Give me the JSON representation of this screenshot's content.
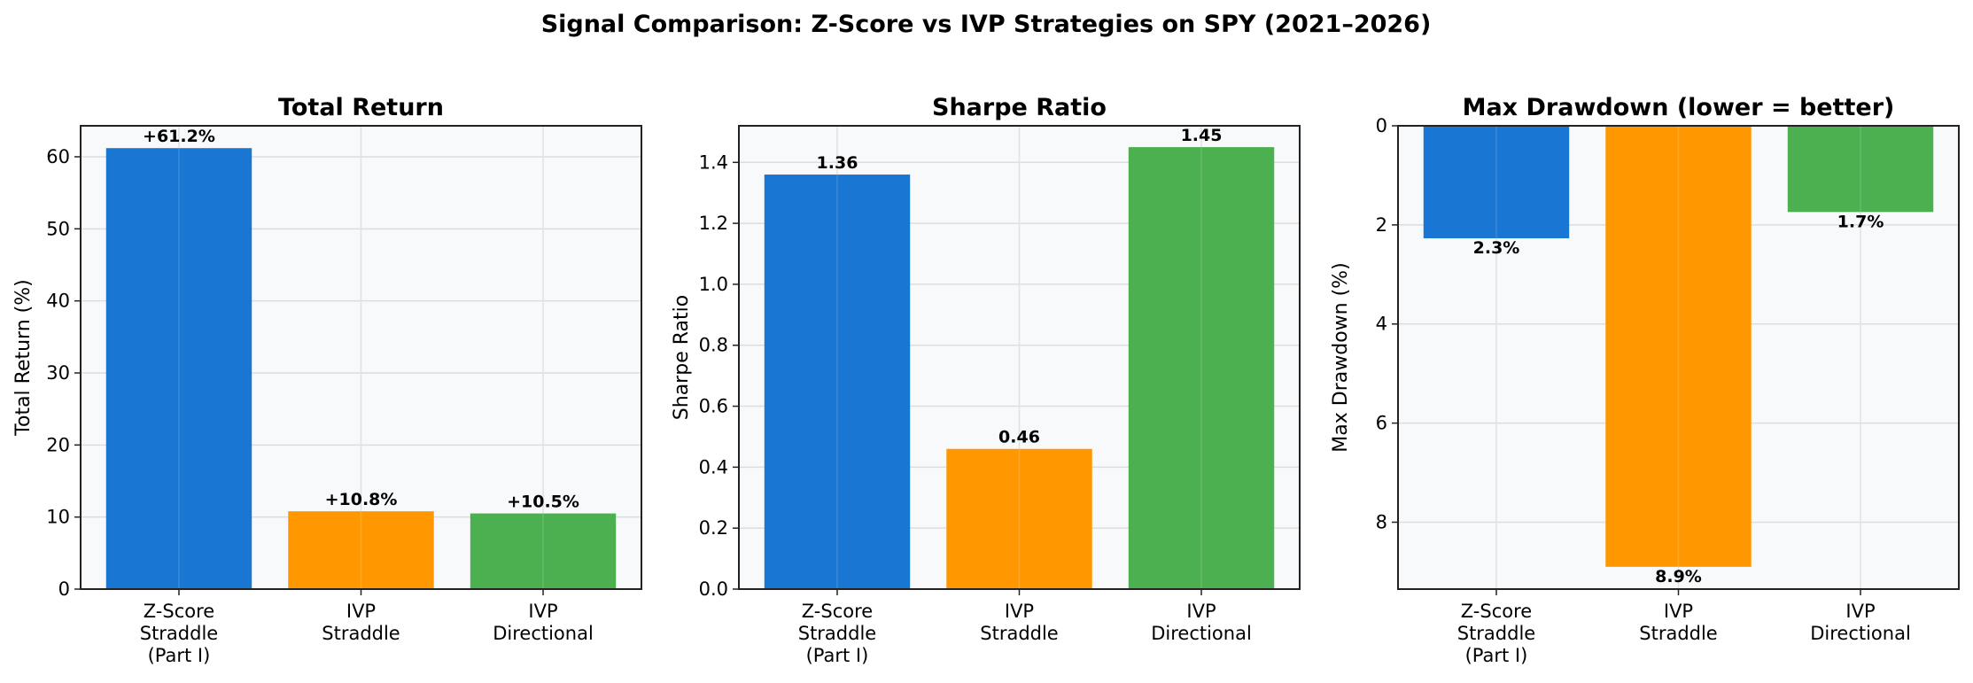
{
  "chart_data": {
    "suptitle": "Signal Comparison: Z-Score vs IVP Strategies on SPY (2021–2026)",
    "categories": [
      [
        "Z-Score",
        "Straddle",
        "(Part I)"
      ],
      [
        "IVP",
        "Straddle"
      ],
      [
        "IVP",
        "Directional"
      ]
    ],
    "colors": [
      "#1976d2",
      "#ff9800",
      "#4caf50"
    ],
    "panels": [
      {
        "type": "bar",
        "title": "Total Return",
        "ylabel": "Total Return (%)",
        "values": [
          61.2,
          10.8,
          10.5
        ],
        "labels": [
          "+61.2%",
          "+10.8%",
          "+10.5%"
        ],
        "ylim": [
          0,
          64.3
        ],
        "yticks": [
          0,
          10,
          20,
          30,
          40,
          50,
          60
        ],
        "ytick_labels": [
          "0",
          "10",
          "20",
          "30",
          "40",
          "50",
          "60"
        ],
        "inverted": false,
        "grid": true
      },
      {
        "type": "bar",
        "title": "Sharpe Ratio",
        "ylabel": "Sharpe Ratio",
        "values": [
          1.36,
          0.46,
          1.45
        ],
        "labels": [
          "1.36",
          "0.46",
          "1.45"
        ],
        "ylim": [
          0,
          1.52
        ],
        "yticks": [
          0,
          0.2,
          0.4,
          0.6,
          0.8,
          1.0,
          1.2,
          1.4
        ],
        "ytick_labels": [
          "0.0",
          "0.2",
          "0.4",
          "0.6",
          "0.8",
          "1.0",
          "1.2",
          "1.4"
        ],
        "inverted": false,
        "grid": true
      },
      {
        "type": "bar",
        "title": "Max Drawdown (lower = better)",
        "ylabel": "Max Drawdown (%)",
        "values": [
          2.27,
          8.9,
          1.74
        ],
        "labels": [
          "2.3%",
          "8.9%",
          "1.7%"
        ],
        "ylim": [
          0,
          9.35
        ],
        "yticks": [
          0,
          2,
          4,
          6,
          8
        ],
        "ytick_labels": [
          "0",
          "2",
          "4",
          "6",
          "8"
        ],
        "inverted": true,
        "grid": true
      }
    ]
  }
}
